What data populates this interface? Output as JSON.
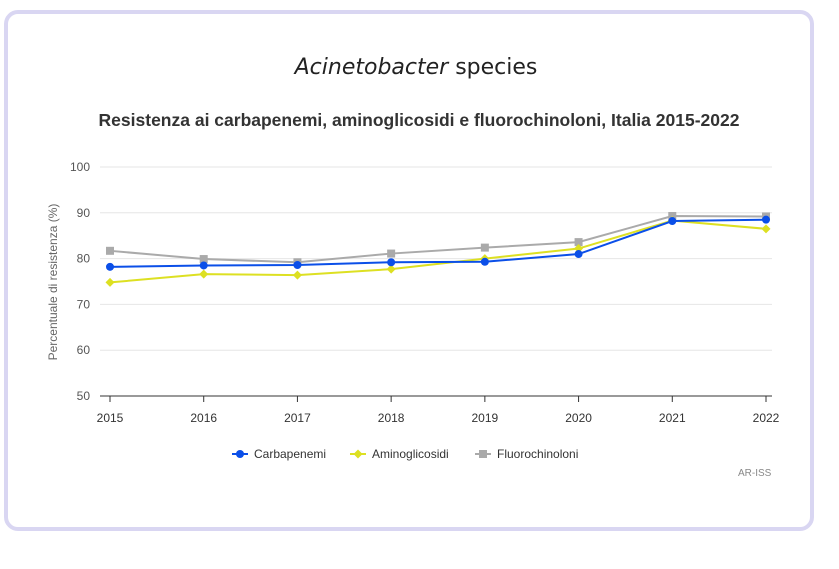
{
  "header": {
    "genus": "Acinetobacter",
    "species_label": "species"
  },
  "credit": "AR-ISS",
  "colors": {
    "carbapenemi": "#0b4fe8",
    "aminoglicosidi": "#dde022",
    "fluorochinoloni": "#aaaaaa",
    "card_border": "#d9d6f2"
  },
  "chart_data": {
    "type": "line",
    "title": "Resistenza ai carbapenemi, aminoglicosidi e fluorochinoloni, Italia 2015-2022",
    "xlabel": "",
    "ylabel": "Percentuale di resistenza (%)",
    "x": [
      "2015",
      "2016",
      "2017",
      "2018",
      "2019",
      "2020",
      "2021",
      "2022"
    ],
    "ylim": [
      50,
      100
    ],
    "yticks": [
      "50",
      "60",
      "70",
      "80",
      "90",
      "100"
    ],
    "grid": true,
    "legend": "bottom-center",
    "series": [
      {
        "name": "Carbapenemi",
        "marker": "circle",
        "color": "#0b4fe8",
        "values": [
          78.2,
          78.5,
          78.6,
          79.2,
          79.3,
          81.0,
          88.2,
          88.5
        ]
      },
      {
        "name": "Aminoglicosidi",
        "marker": "diamond",
        "color": "#dde022",
        "values": [
          74.8,
          76.6,
          76.4,
          77.7,
          80.0,
          82.2,
          88.3,
          86.5
        ]
      },
      {
        "name": "Fluorochinoloni",
        "marker": "square",
        "color": "#aaaaaa",
        "values": [
          81.7,
          79.9,
          79.2,
          81.1,
          82.4,
          83.6,
          89.3,
          89.2
        ]
      }
    ]
  }
}
